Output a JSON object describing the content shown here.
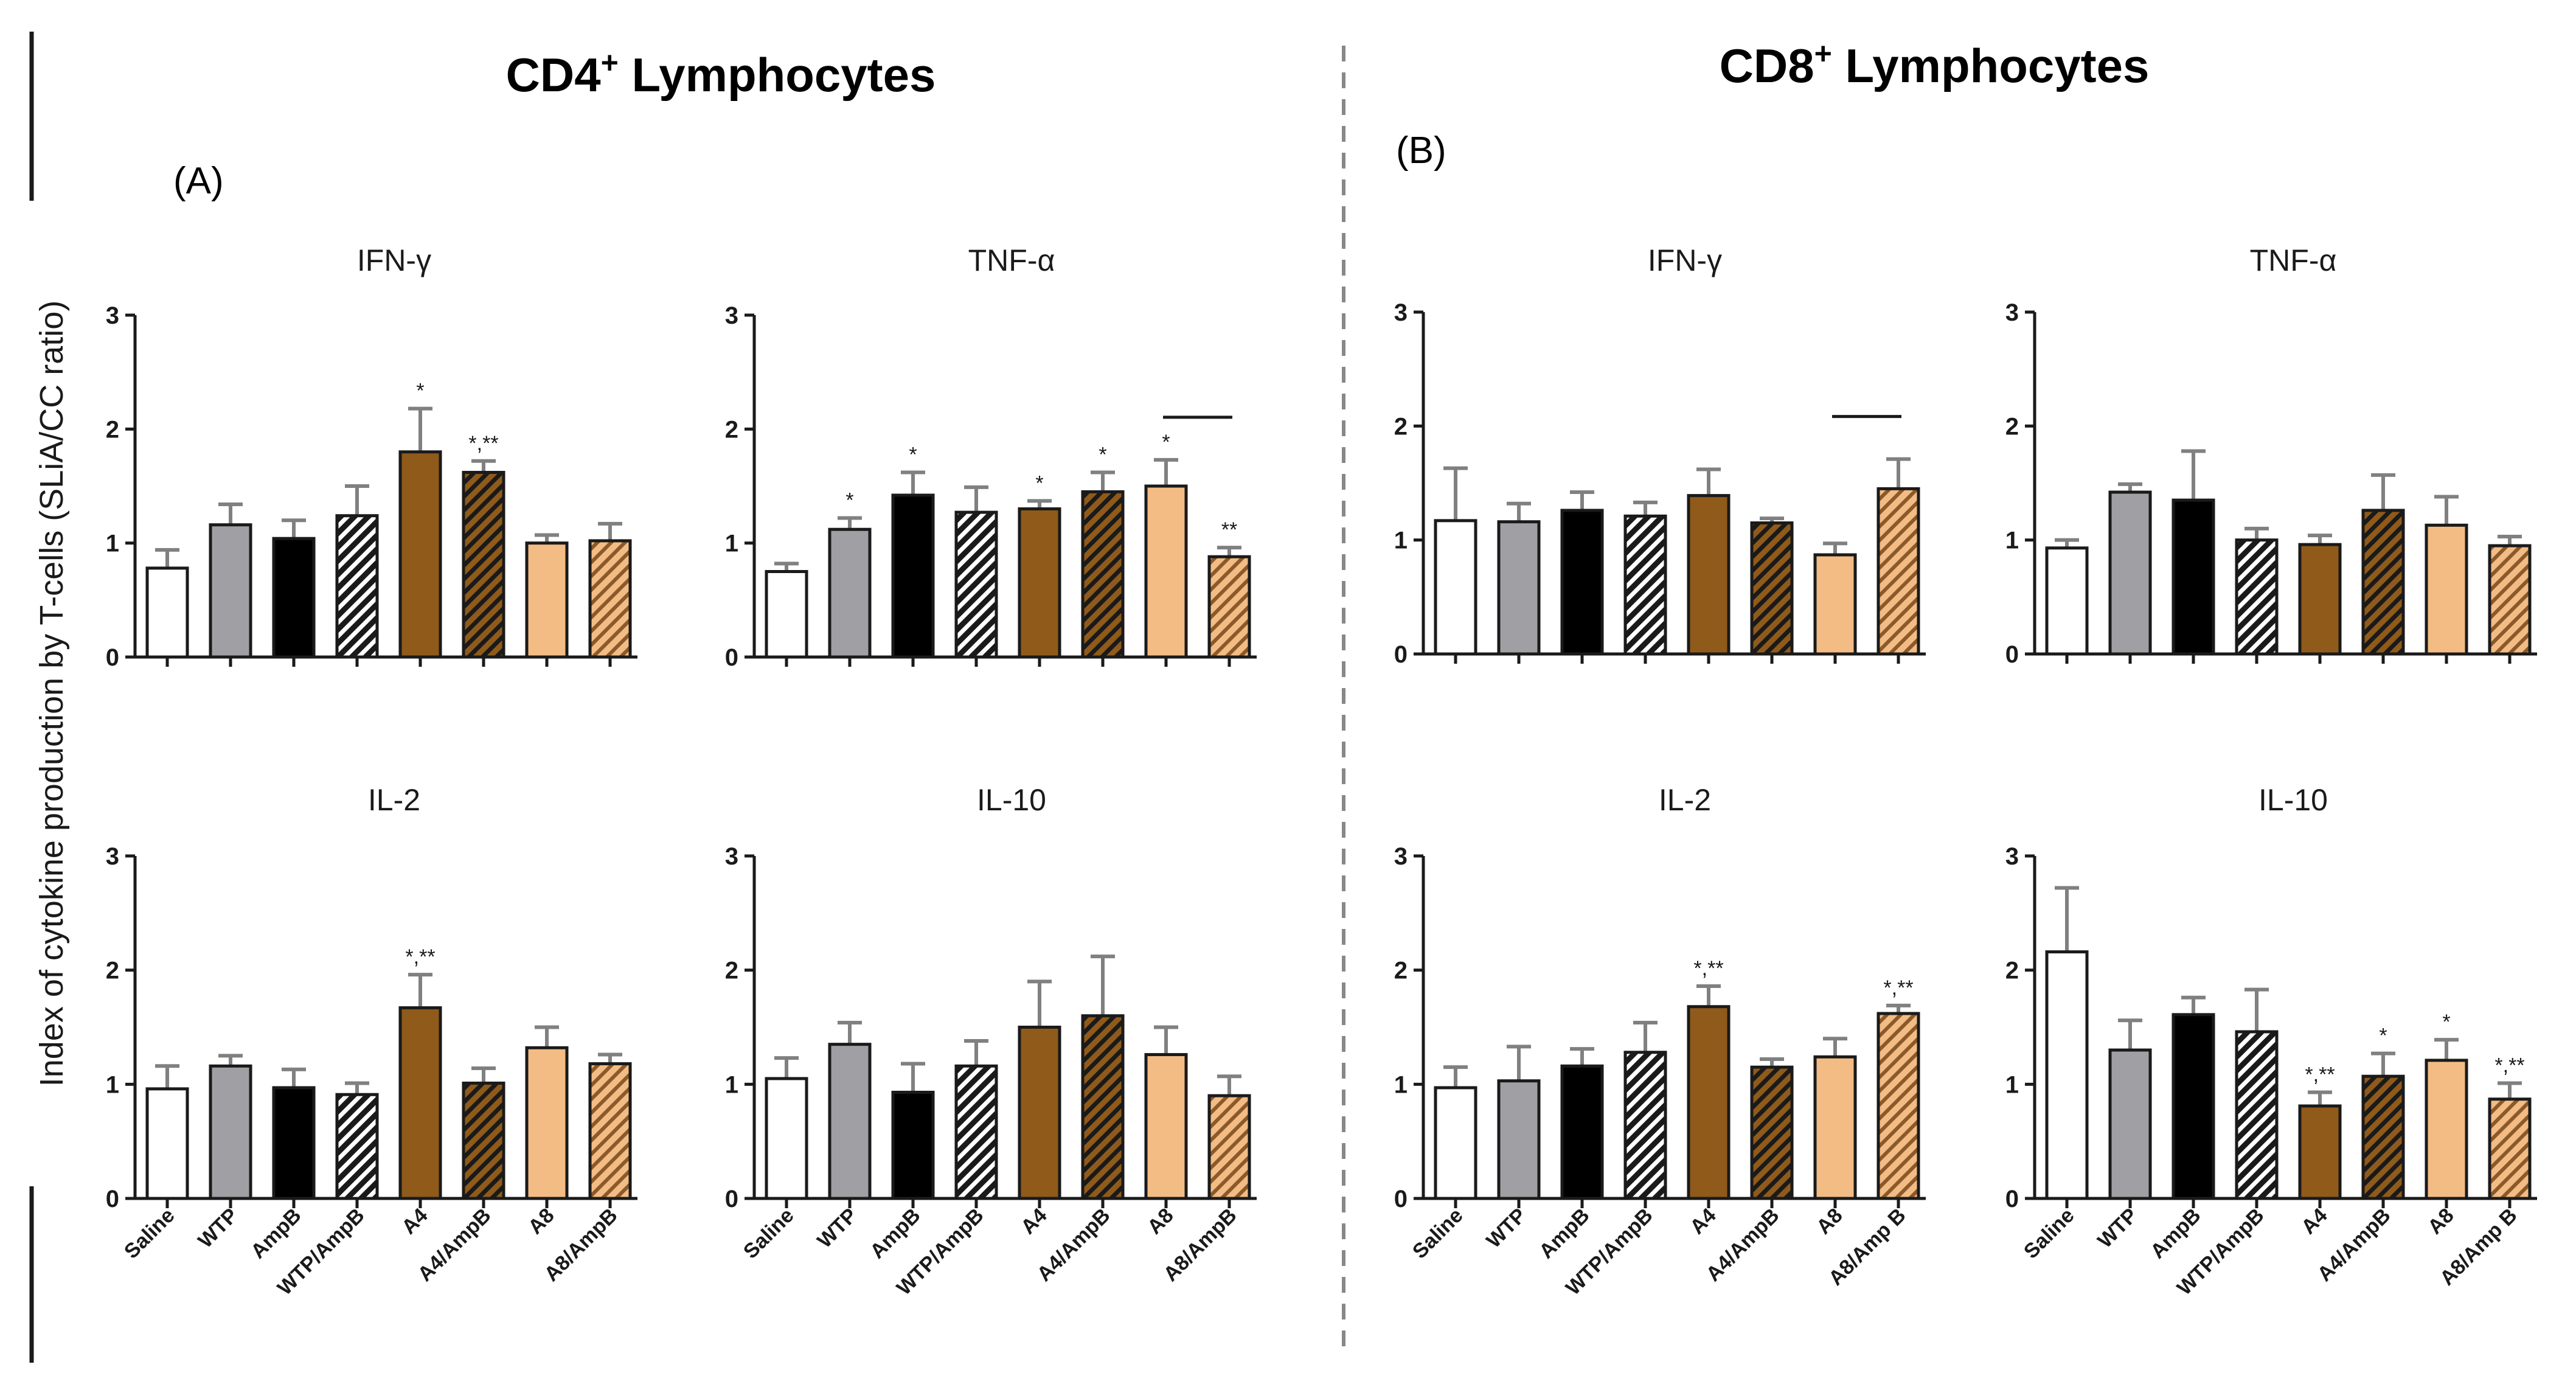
{
  "figure": {
    "y_axis_label": "Index of cytokine production by T-cells (SLiA/CC ratio)",
    "sections": [
      {
        "title": "CD4",
        "superscript": "+",
        "title_suffix": " Lymphocytes",
        "panel_label": "(A)"
      },
      {
        "title": "CD8",
        "superscript": "+",
        "title_suffix": " Lymphocytes",
        "panel_label": "(B)"
      }
    ]
  },
  "colors": {
    "Saline": "#ffffff",
    "WTP": "#a0a0a4",
    "AmpB": "#000000",
    "A4": "#8f5a1a",
    "A8": "#f3bc84",
    "outline": "#1a1a1a",
    "error_bar": "#808080"
  },
  "chart_data": [
    {
      "type": "bar",
      "section": "CD4",
      "title": "IFN-γ",
      "ylim": [
        0,
        3
      ],
      "yticks": [
        "0",
        "1",
        "2",
        "3"
      ],
      "categories": [
        "Saline",
        "WTP",
        "AmpB",
        "WTP/AmpB",
        "A4",
        "A4/AmpB",
        "A8",
        "A8/AmpB"
      ],
      "values": [
        0.78,
        1.16,
        1.04,
        1.24,
        1.8,
        1.62,
        1.0,
        1.02
      ],
      "errors": [
        0.16,
        0.18,
        0.16,
        0.26,
        0.38,
        0.1,
        0.07,
        0.15
      ],
      "annotations": [
        "",
        "",
        "",
        "",
        "*",
        "*,**",
        "",
        ""
      ],
      "show_tick_labels": false
    },
    {
      "type": "bar",
      "section": "CD4",
      "title": "TNF-α",
      "ylim": [
        0,
        3
      ],
      "yticks": [
        "0",
        "1",
        "2",
        "3"
      ],
      "categories": [
        "Saline",
        "WTP",
        "AmpB",
        "WTP/AmpB",
        "A4",
        "A4/AmpB",
        "A8",
        "A8/AmpB"
      ],
      "values": [
        0.75,
        1.12,
        1.42,
        1.27,
        1.3,
        1.45,
        1.5,
        0.88
      ],
      "errors": [
        0.07,
        0.1,
        0.2,
        0.22,
        0.07,
        0.17,
        0.23,
        0.08
      ],
      "annotations": [
        "",
        "*",
        "*",
        "",
        "*",
        "*",
        "*",
        "**"
      ],
      "bracket": [
        6,
        7
      ],
      "show_tick_labels": false
    },
    {
      "type": "bar",
      "section": "CD4",
      "title": "IL-2",
      "ylim": [
        0,
        3
      ],
      "yticks": [
        "0",
        "1",
        "2",
        "3"
      ],
      "categories": [
        "Saline",
        "WTP",
        "AmpB",
        "WTP/AmpB",
        "A4",
        "A4/AmpB",
        "A8",
        "A8/AmpB"
      ],
      "values": [
        0.96,
        1.16,
        0.97,
        0.91,
        1.67,
        1.01,
        1.32,
        1.18
      ],
      "errors": [
        0.2,
        0.09,
        0.16,
        0.1,
        0.29,
        0.13,
        0.18,
        0.08
      ],
      "annotations": [
        "",
        "",
        "",
        "",
        "*,**",
        "",
        "",
        ""
      ],
      "show_tick_labels": true
    },
    {
      "type": "bar",
      "section": "CD4",
      "title": "IL-10",
      "ylim": [
        0,
        3
      ],
      "yticks": [
        "0",
        "1",
        "2",
        "3"
      ],
      "categories": [
        "Saline",
        "WTP",
        "AmpB",
        "WTP/AmpB",
        "A4",
        "A4/AmpB",
        "A8",
        "A8/AmpB"
      ],
      "values": [
        1.05,
        1.35,
        0.93,
        1.16,
        1.5,
        1.6,
        1.26,
        0.9
      ],
      "errors": [
        0.18,
        0.19,
        0.25,
        0.22,
        0.4,
        0.52,
        0.24,
        0.17
      ],
      "annotations": [
        "",
        "",
        "",
        "",
        "",
        "",
        "",
        ""
      ],
      "show_tick_labels": true
    },
    {
      "type": "bar",
      "section": "CD8",
      "title": "IFN-γ",
      "ylim": [
        0,
        3
      ],
      "yticks": [
        "0",
        "1",
        "2",
        "3"
      ],
      "categories": [
        "Saline",
        "WTP",
        "AmpB",
        "WTP/AmpB",
        "A4",
        "A4/AmpB",
        "A8",
        "A8/Amp B"
      ],
      "values": [
        1.17,
        1.16,
        1.26,
        1.21,
        1.39,
        1.15,
        0.87,
        1.45
      ],
      "errors": [
        0.46,
        0.16,
        0.16,
        0.12,
        0.23,
        0.04,
        0.1,
        0.26
      ],
      "annotations": [
        "",
        "",
        "",
        "",
        "",
        "",
        "",
        ""
      ],
      "bracket": [
        6,
        7
      ],
      "show_tick_labels": false
    },
    {
      "type": "bar",
      "section": "CD8",
      "title": "TNF-α",
      "ylim": [
        0,
        3
      ],
      "yticks": [
        "0",
        "1",
        "2",
        "3"
      ],
      "categories": [
        "Saline",
        "WTP",
        "AmpB",
        "WTP/AmpB",
        "A4",
        "A4/AmpB",
        "A8",
        "A8/Amp B"
      ],
      "values": [
        0.93,
        1.42,
        1.35,
        1.0,
        0.96,
        1.26,
        1.13,
        0.95
      ],
      "errors": [
        0.07,
        0.07,
        0.43,
        0.1,
        0.08,
        0.31,
        0.25,
        0.08
      ],
      "annotations": [
        "",
        "",
        "",
        "",
        "",
        "",
        "",
        ""
      ],
      "show_tick_labels": false
    },
    {
      "type": "bar",
      "section": "CD8",
      "title": "IL-2",
      "ylim": [
        0,
        3
      ],
      "yticks": [
        "0",
        "1",
        "2",
        "3"
      ],
      "categories": [
        "Saline",
        "WTP",
        "AmpB",
        "WTP/AmpB",
        "A4",
        "A4/AmpB",
        "A8",
        "A8/Amp B"
      ],
      "values": [
        0.97,
        1.03,
        1.16,
        1.28,
        1.68,
        1.15,
        1.24,
        1.62
      ],
      "errors": [
        0.18,
        0.3,
        0.15,
        0.26,
        0.18,
        0.07,
        0.16,
        0.07
      ],
      "annotations": [
        "",
        "",
        "",
        "",
        "*,**",
        "",
        "",
        "*,**"
      ],
      "show_tick_labels": true
    },
    {
      "type": "bar",
      "section": "CD8",
      "title": "IL-10",
      "ylim": [
        0,
        3
      ],
      "yticks": [
        "0",
        "1",
        "2",
        "3"
      ],
      "categories": [
        "Saline",
        "WTP",
        "AmpB",
        "WTP/AmpB",
        "A4",
        "A4/AmpB",
        "A8",
        "A8/Amp B"
      ],
      "values": [
        2.16,
        1.3,
        1.61,
        1.46,
        0.81,
        1.07,
        1.21,
        0.87
      ],
      "errors": [
        0.56,
        0.26,
        0.15,
        0.37,
        0.12,
        0.2,
        0.18,
        0.14
      ],
      "annotations": [
        "",
        "",
        "",
        "",
        "*,**",
        "*",
        "*",
        "*,**"
      ],
      "show_tick_labels": true
    }
  ]
}
